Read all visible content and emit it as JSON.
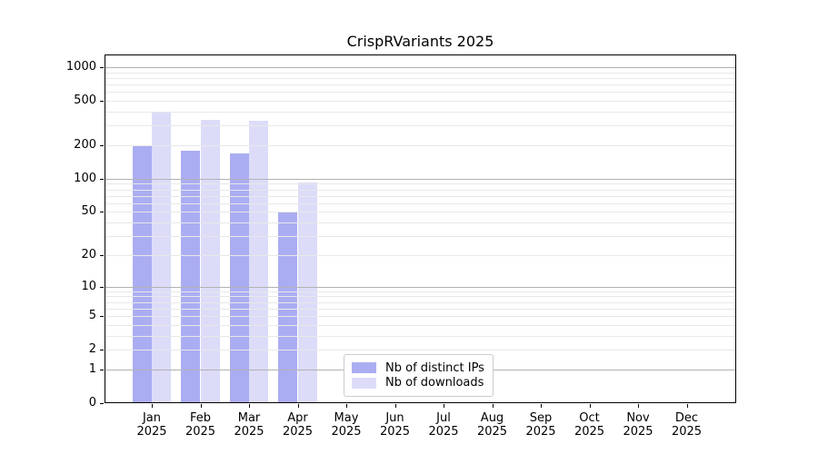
{
  "chart_data": {
    "type": "bar",
    "title": "CrispRVariants 2025",
    "year_label": "2025",
    "categories": [
      "Jan",
      "Feb",
      "Mar",
      "Apr",
      "May",
      "Jun",
      "Jul",
      "Aug",
      "Sep",
      "Oct",
      "Nov",
      "Dec"
    ],
    "series": [
      {
        "name": "Nb of distinct IPs",
        "color": "#abadf2",
        "values": [
          200,
          180,
          170,
          50,
          0,
          0,
          0,
          0,
          0,
          0,
          0,
          0
        ]
      },
      {
        "name": "Nb of downloads",
        "color": "#dcdcf9",
        "values": [
          390,
          335,
          330,
          92,
          0,
          0,
          0,
          0,
          0,
          0,
          0,
          0
        ]
      }
    ],
    "y_axis": {
      "scale": "log1p",
      "ticks": [
        0,
        1,
        2,
        5,
        10,
        20,
        50,
        100,
        200,
        500,
        1000
      ],
      "ylim": [
        0,
        1300
      ],
      "major_gridlines": [
        1,
        10,
        100,
        1000
      ]
    },
    "grid": true,
    "legend_position": "lower center"
  },
  "colors": {
    "major_grid": "#b2b2b2",
    "minor_grid": "#e8e8e8",
    "spine": "#000000",
    "text": "#000000",
    "legend_border": "#cccccc"
  }
}
